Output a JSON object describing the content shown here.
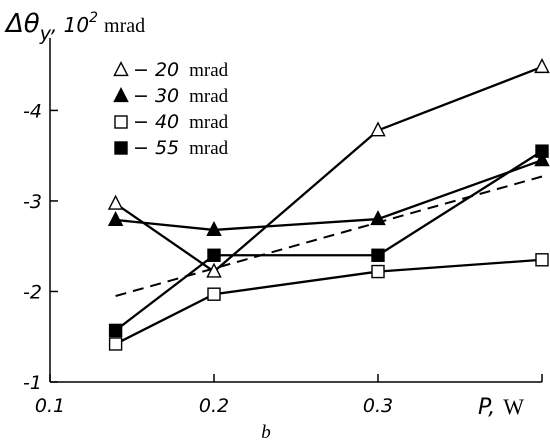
{
  "chart_data": {
    "type": "line",
    "ylabel_symbol": "Δθ",
    "ylabel_sub": "y",
    "ylabel_scale": ", 10",
    "ylabel_exp": "2",
    "ylabel_unit": "mrad",
    "xlabel_symbol": "P,",
    "xlabel_unit": "W",
    "panel_label": "b",
    "xlim": [
      0.1,
      0.4
    ],
    "ylim": [
      -1,
      -4.8
    ],
    "x_ticks": [
      0.1,
      0.2,
      0.3,
      0.4
    ],
    "x_tick_labels": [
      "0.1",
      "0.2",
      "0.3",
      ""
    ],
    "y_ticks": [
      -1,
      -2,
      -3,
      -4
    ],
    "y_tick_labels": [
      "-1",
      "-2",
      "-3",
      "-4"
    ],
    "grid": false,
    "legend_position": "top-left",
    "x": [
      0.14,
      0.2,
      0.3,
      0.4
    ],
    "series": [
      {
        "name": "20",
        "unit": "mrad",
        "marker": "triangle-open",
        "values": [
          -2.97,
          -2.22,
          -3.78,
          -4.48
        ]
      },
      {
        "name": "30",
        "unit": "mrad",
        "marker": "triangle-filled",
        "values": [
          -2.79,
          -2.68,
          -2.8,
          -3.45
        ]
      },
      {
        "name": "40",
        "unit": "mrad",
        "marker": "square-open",
        "values": [
          -1.42,
          -1.97,
          -2.22,
          -2.35
        ]
      },
      {
        "name": "55",
        "unit": "mrad",
        "marker": "square-filled",
        "values": [
          -1.57,
          -2.4,
          -2.4,
          -3.55
        ]
      }
    ],
    "trend": {
      "style": "dashed",
      "x": [
        0.14,
        0.4
      ],
      "y": [
        -1.95,
        -3.27
      ]
    }
  }
}
